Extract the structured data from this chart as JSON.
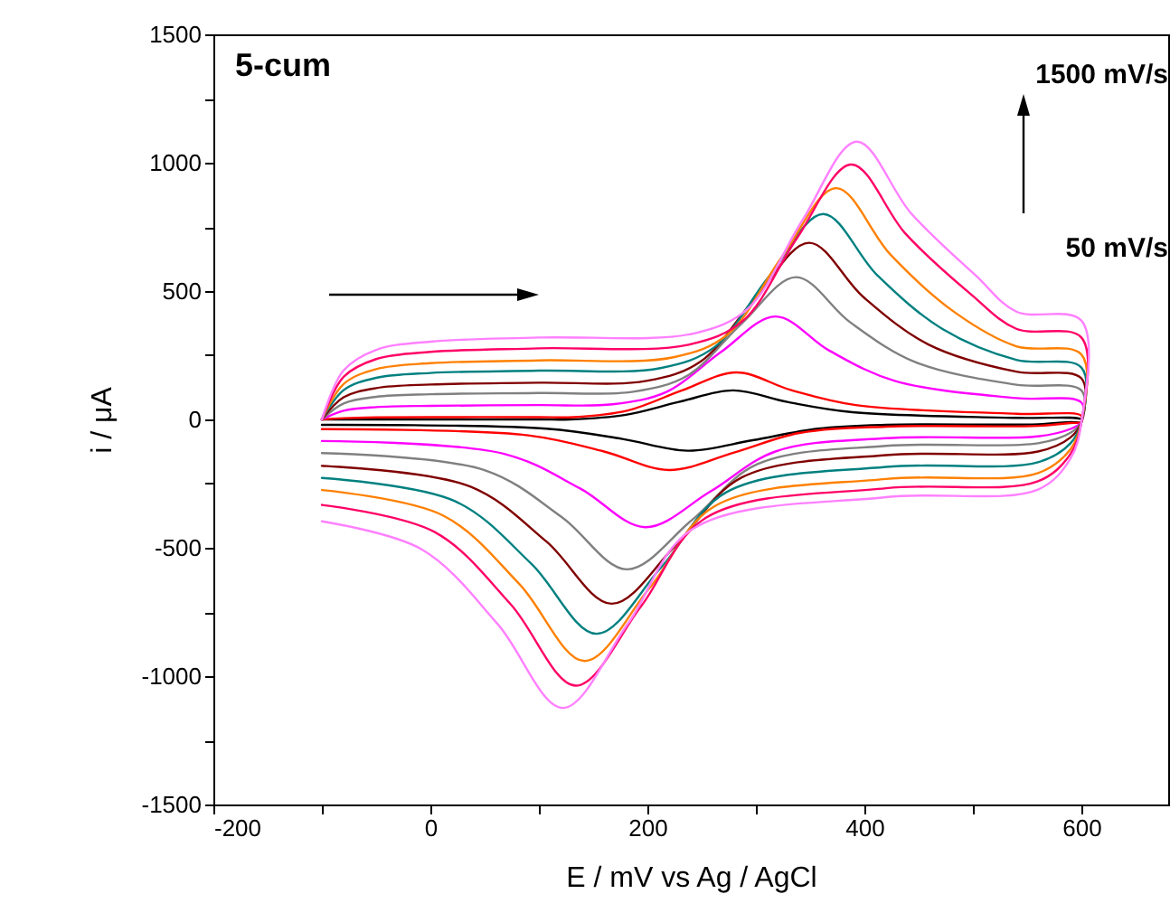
{
  "chart_data": {
    "type": "line",
    "xlabel": "E  /  mV  vs  Ag  /  AgCl",
    "ylabel": "i  /  μA",
    "xlim": [
      -200,
      680
    ],
    "ylim": [
      -1500,
      1500
    ],
    "xticks": [
      -200,
      {
        "value": -100,
        "label": null
      },
      0,
      {
        "value": 100,
        "label": null
      },
      200,
      {
        "value": 300,
        "label": null
      },
      400,
      {
        "value": 500,
        "label": null
      },
      600
    ],
    "yticks": [
      -1500,
      {
        "value": -1250,
        "label": null
      },
      -1000,
      {
        "value": -750,
        "label": null
      },
      -500,
      {
        "value": -250,
        "label": null
      },
      0,
      {
        "value": 250,
        "label": null
      },
      500,
      {
        "value": 750,
        "label": null
      },
      1000,
      {
        "value": 1250,
        "label": null
      },
      1500
    ],
    "annotations": [
      "5-cum",
      "1500 mV/s",
      "50 mV/s"
    ],
    "series": [
      {
        "color": "#000000",
        "x": [
          -100,
          -80,
          -50,
          0,
          100,
          129,
          179,
          229,
          279,
          329,
          389,
          540,
          600,
          600,
          590,
          560,
          420,
          357,
          297,
          237,
          177,
          107,
          -100
        ],
        "values": [
          0,
          0,
          0,
          0,
          0,
          0,
          17,
          68,
          113,
          68,
          28,
          6,
          0,
          -10,
          -10,
          -19,
          -21,
          -36,
          -81,
          -122,
          -76,
          -36,
          -21
        ]
      },
      {
        "color": "#ff0000",
        "x": [
          -100,
          -80,
          -50,
          0,
          100,
          132,
          182,
          232,
          282,
          332,
          392,
          540,
          600,
          600,
          590,
          560,
          420,
          340,
          280,
          220,
          160,
          90,
          -100
        ],
        "values": [
          0,
          5,
          8,
          9,
          9,
          9,
          35,
          113,
          183,
          115,
          56,
          22,
          14,
          -10,
          -14,
          -25,
          -28,
          -53,
          -129,
          -197,
          -125,
          -62,
          -38
        ]
      },
      {
        "color": "#ff00ff",
        "x": [
          -100,
          -80,
          -50,
          0,
          100,
          168,
          218,
          268,
          318,
          368,
          428,
          540,
          600,
          600,
          590,
          560,
          420,
          318,
          258,
          198,
          138,
          68,
          -100
        ],
        "values": [
          0,
          34,
          48,
          53,
          56,
          59,
          108,
          263,
          401,
          267,
          150,
          83,
          66,
          -10,
          -37,
          -66,
          -73,
          -125,
          -281,
          -420,
          -269,
          -134,
          -84
        ]
      },
      {
        "color": "#808080",
        "x": [
          -100,
          -80,
          -50,
          0,
          100,
          187,
          237,
          287,
          337,
          387,
          447,
          540,
          600,
          600,
          590,
          560,
          420,
          301,
          241,
          181,
          121,
          51,
          -100
        ],
        "values": [
          0,
          62,
          88,
          98,
          103,
          108,
          171,
          374,
          554,
          378,
          223,
          135,
          113,
          -10,
          -52,
          -93,
          -103,
          -175,
          -392,
          -584,
          -380,
          -199,
          -131
        ]
      },
      {
        "color": "#800000",
        "x": [
          -100,
          -80,
          -50,
          0,
          100,
          199,
          249,
          299,
          349,
          399,
          459,
          540,
          600,
          600,
          590,
          560,
          420,
          287,
          227,
          167,
          107,
          37,
          -100
        ],
        "values": [
          0,
          86,
          122,
          136,
          143,
          150,
          225,
          470,
          688,
          477,
          292,
          186,
          160,
          -10,
          -70,
          -125,
          -139,
          -226,
          -486,
          -718,
          -476,
          -262,
          -181
        ]
      },
      {
        "color": "#008080",
        "x": [
          -100,
          -80,
          -50,
          0,
          100,
          212,
          262,
          312,
          362,
          412,
          472,
          540,
          600,
          600,
          590,
          560,
          420,
          273,
          213,
          153,
          93,
          23,
          -100
        ],
        "values": [
          0,
          114,
          162,
          181,
          190,
          200,
          282,
          556,
          800,
          561,
          352,
          232,
          202,
          -10,
          -93,
          -167,
          -185,
          -283,
          -575,
          -835,
          -562,
          -319,
          -228
        ]
      },
      {
        "color": "#ff8000",
        "x": [
          -100,
          -80,
          -50,
          0,
          100,
          224,
          274,
          324,
          374,
          424,
          484,
          540,
          600,
          600,
          590,
          560,
          420,
          262,
          202,
          142,
          82,
          12,
          -100
        ],
        "values": [
          0,
          138,
          196,
          219,
          230,
          242,
          331,
          633,
          901,
          642,
          415,
          285,
          253,
          -10,
          -116,
          -209,
          -232,
          -338,
          -657,
          -941,
          -641,
          -375,
          -275
        ]
      },
      {
        "color": "#ff0066",
        "x": [
          -100,
          -80,
          -50,
          0,
          100,
          238,
          288,
          338,
          388,
          438,
          498,
          540,
          600,
          600,
          590,
          560,
          420,
          254,
          194,
          134,
          74,
          4,
          -100
        ],
        "values": [
          0,
          166,
          235,
          263,
          277,
          291,
          384,
          707,
          993,
          723,
          488,
          353,
          319,
          -10,
          -134,
          -241,
          -268,
          -383,
          -729,
          -1037,
          -720,
          -439,
          -333
        ]
      },
      {
        "color": "#ff80ff",
        "x": [
          -100,
          -80,
          -50,
          0,
          100,
          243,
          293,
          343,
          393,
          443,
          503,
          540,
          600,
          600,
          590,
          560,
          420,
          242,
          182,
          122,
          62,
          -8,
          -100
        ],
        "values": [
          0,
          191,
          271,
          303,
          319,
          335,
          433,
          777,
          1082,
          803,
          559,
          420,
          385,
          -10,
          -152,
          -273,
          -303,
          -426,
          -796,
          -1124,
          -797,
          -506,
          -397
        ]
      }
    ]
  }
}
